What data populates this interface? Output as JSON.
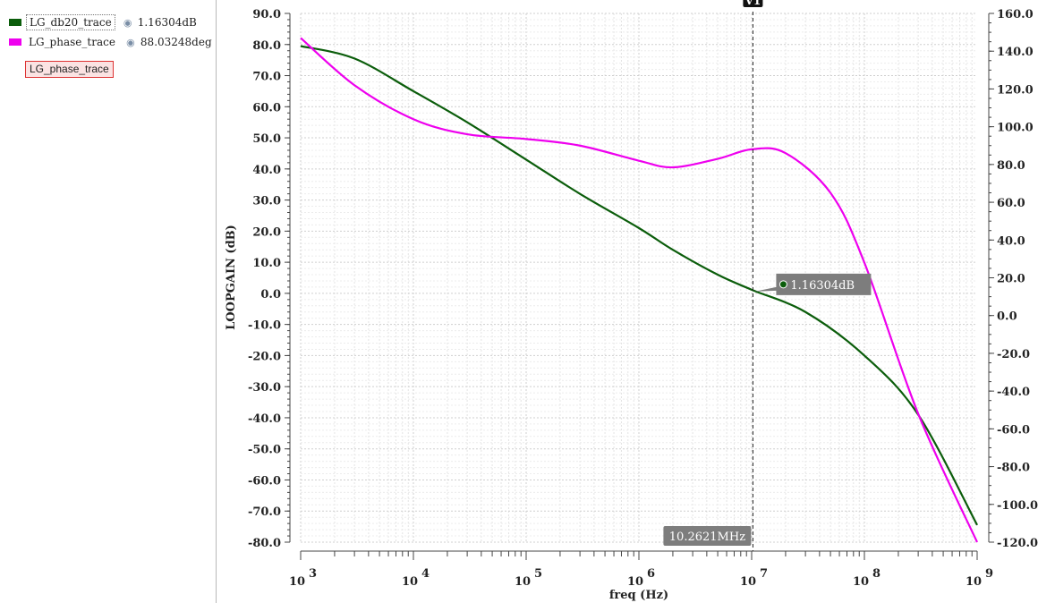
{
  "legend": {
    "items": [
      {
        "name": "LG_db20_trace",
        "color": "#0b5d0b",
        "value": "1.16304dB",
        "icon": "eye-icon"
      },
      {
        "name": "LG_phase_trace",
        "color": "#ee00ee",
        "value": "88.03248deg",
        "icon": "eye-icon"
      }
    ],
    "selected_tag": "LG_phase_trace"
  },
  "chart_data": {
    "type": "line",
    "x_scale": "log",
    "xlabel": "freq (Hz)",
    "ylabel_left": "LOOPGAIN (dB)",
    "ylabel_right": "LOOPGAIN (deg)",
    "xlim": [
      1000,
      1000000000
    ],
    "ylim_left": [
      -80,
      90
    ],
    "ylim_right": [
      -120,
      160
    ],
    "x_ticks": [
      {
        "exp": "3",
        "value": 1000
      },
      {
        "exp": "4",
        "value": 10000
      },
      {
        "exp": "5",
        "value": 100000
      },
      {
        "exp": "6",
        "value": 1000000
      },
      {
        "exp": "7",
        "value": 10000000
      },
      {
        "exp": "8",
        "value": 100000000
      },
      {
        "exp": "9",
        "value": 1000000000
      }
    ],
    "y_left_ticks": [
      "90.0",
      "80.0",
      "70.0",
      "60.0",
      "50.0",
      "40.0",
      "30.0",
      "20.0",
      "10.0",
      "0.0",
      "-10.0",
      "-20.0",
      "-30.0",
      "-40.0",
      "-50.0",
      "-60.0",
      "-70.0",
      "-80.0"
    ],
    "y_right_ticks": [
      "160.0",
      "140.0",
      "120.0",
      "100.0",
      "80.0",
      "60.0",
      "40.0",
      "20.0",
      "0.0",
      "-20.0",
      "-40.0",
      "-60.0",
      "-80.0",
      "-100.0",
      "-120.0"
    ],
    "grid": true,
    "series": [
      {
        "name": "LG_db20_trace",
        "axis": "left",
        "color": "#0b5d0b",
        "x": [
          1000,
          3000,
          10000,
          30000,
          100000,
          300000,
          1000000,
          2000000,
          5000000,
          10000000,
          30000000,
          100000000,
          300000000,
          1000000000
        ],
        "y": [
          79.5,
          75.5,
          65.0,
          55.0,
          43.0,
          32.0,
          21.0,
          14.0,
          6.0,
          1.16,
          -6.0,
          -20.0,
          -39.0,
          -74.5
        ]
      },
      {
        "name": "LG_phase_trace",
        "axis": "right",
        "color": "#ee00ee",
        "x": [
          1000,
          3000,
          10000,
          30000,
          100000,
          300000,
          1000000,
          2000000,
          5000000,
          10000000,
          20000000,
          50000000,
          100000000,
          300000000,
          1000000000
        ],
        "y": [
          147.0,
          122.0,
          104.0,
          96.0,
          93.5,
          90.0,
          82.0,
          78.5,
          83.0,
          88.03,
          86.0,
          65.0,
          28.0,
          -52.0,
          -120.0
        ]
      }
    ],
    "cursor": {
      "label": "V1",
      "x": 10262100,
      "x_readout": "10.2621MHz",
      "y_readout": "1.16304dB"
    }
  }
}
